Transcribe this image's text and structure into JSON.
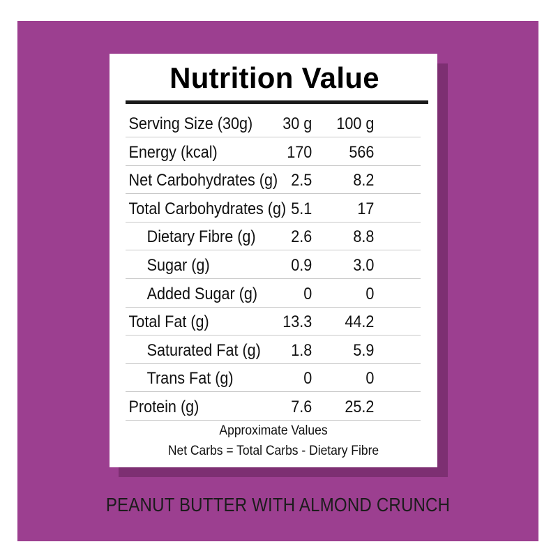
{
  "title": "Nutrition Value",
  "rows": [
    {
      "name": "Serving Size (30g)",
      "v30": "30 g",
      "v100": "100 g",
      "indent": false
    },
    {
      "name": "Energy (kcal)",
      "v30": "170",
      "v100": "566",
      "indent": false
    },
    {
      "name": "Net Carbohydrates (g)",
      "v30": "2.5",
      "v100": "8.2",
      "indent": false
    },
    {
      "name": "Total Carbohydrates (g)",
      "v30": "5.1",
      "v100": "17",
      "indent": false
    },
    {
      "name": "Dietary Fibre (g)",
      "v30": "2.6",
      "v100": "8.8",
      "indent": true
    },
    {
      "name": "Sugar (g)",
      "v30": "0.9",
      "v100": "3.0",
      "indent": true
    },
    {
      "name": "Added Sugar (g)",
      "v30": "0",
      "v100": "0",
      "indent": true
    },
    {
      "name": "Total Fat (g)",
      "v30": "13.3",
      "v100": "44.2",
      "indent": false
    },
    {
      "name": "Saturated Fat (g)",
      "v30": "1.8",
      "v100": "5.9",
      "indent": true
    },
    {
      "name": "Trans Fat (g)",
      "v30": "0",
      "v100": "0",
      "indent": true
    },
    {
      "name": "Protein (g)",
      "v30": "7.6",
      "v100": "25.2",
      "indent": false
    }
  ],
  "notes": {
    "approx": "Approximate Values",
    "net_carbs": "Net Carbs = Total Carbs - Dietary Fibre"
  },
  "product_name": "PEANUT BUTTER WITH ALMOND CRUNCH",
  "colors": {
    "background": "#9c3f90",
    "shadow": "#7d2f72",
    "label": "#ffffff"
  }
}
